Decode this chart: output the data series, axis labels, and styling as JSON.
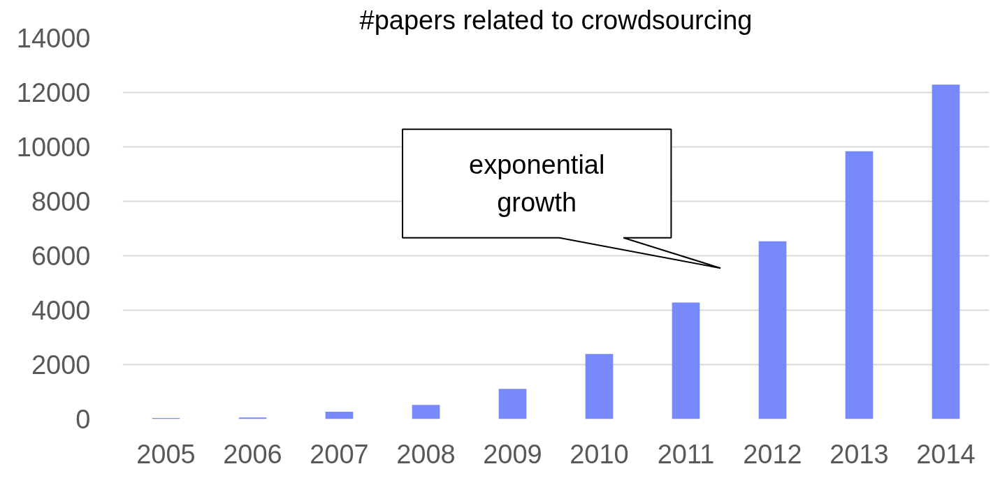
{
  "chart_data": {
    "type": "bar",
    "title": "#papers related to crowdsourcing",
    "categories": [
      "2005",
      "2006",
      "2007",
      "2008",
      "2009",
      "2010",
      "2011",
      "2012",
      "2013",
      "2014"
    ],
    "values": [
      40,
      60,
      270,
      520,
      1110,
      2390,
      4280,
      6530,
      9840,
      12290
    ],
    "color": "#7889fb",
    "ylim": [
      0,
      14000
    ],
    "yticks": [
      0,
      2000,
      4000,
      6000,
      8000,
      10000,
      12000,
      14000
    ],
    "grid": "y",
    "annotations": [
      "exponential growth"
    ]
  }
}
